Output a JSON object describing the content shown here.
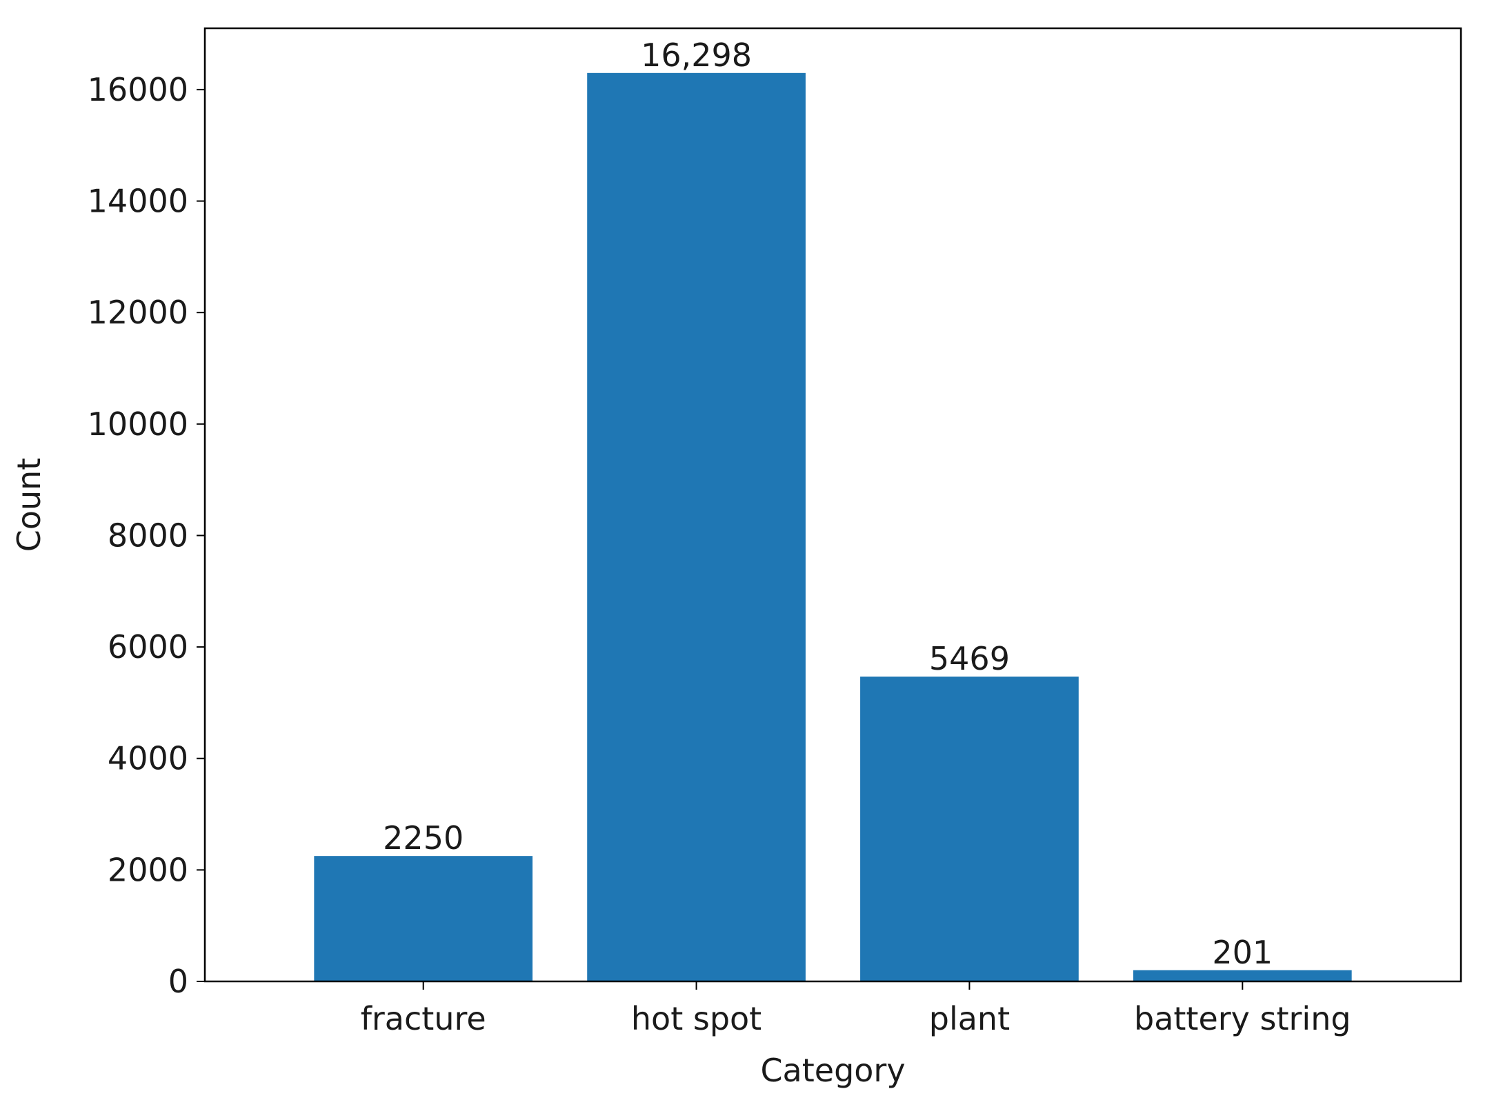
{
  "chart_data": {
    "type": "bar",
    "categories": [
      "fracture",
      "hot spot",
      "plant",
      "battery string"
    ],
    "values": [
      2250,
      16298,
      5469,
      201
    ],
    "data_labels": [
      "2250",
      "16,298",
      "5469",
      "201"
    ],
    "title": "",
    "xlabel": "Category",
    "ylabel": "Count",
    "ylim": [
      0,
      17100
    ],
    "yticks": [
      0,
      2000,
      4000,
      6000,
      8000,
      10000,
      12000,
      14000,
      16000
    ],
    "grid": false,
    "bar_color": "#1f77b4",
    "axis_color": "#000000"
  }
}
